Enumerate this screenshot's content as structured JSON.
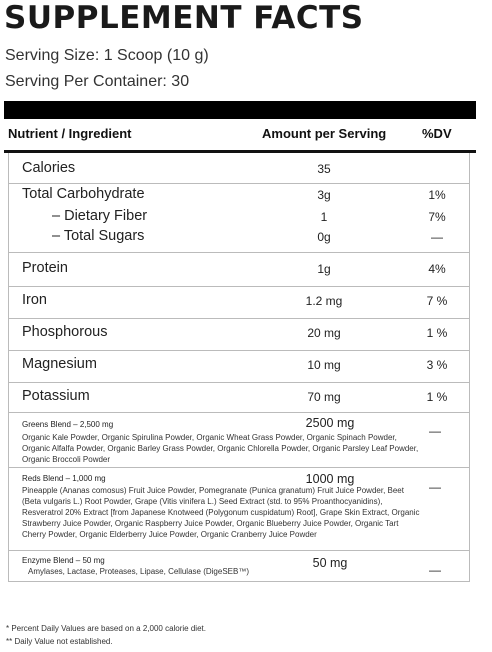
{
  "header": {
    "title": "SUPPLEMENT FACTS",
    "serving_size": "Serving Size: 1 Scoop (10 g)",
    "servings_per_container": "Serving Per Container: 30"
  },
  "table": {
    "columns": [
      "Nutrient / Ingredient",
      "Amount per Serving",
      "%DV"
    ],
    "rows": [
      {
        "name": "Calories",
        "amount": "35"
      },
      {
        "name": "Total Carbohydrate",
        "amount": "3g",
        "dv": "1%"
      },
      {
        "name": "– Dietary Fiber",
        "amount": "1",
        "dv": "7%"
      },
      {
        "name": "– Total Sugars",
        "amount": "0g",
        "dv": "—"
      },
      {
        "name": "Protein",
        "amount": "1g",
        "dv": "4%"
      },
      {
        "name": "Iron",
        "amount": "1.2 mg",
        "dv": "7 %"
      },
      {
        "name": "Phosphorous",
        "amount": "20 mg",
        "dv": "1 %"
      },
      {
        "name": "Magnesium",
        "amount": "10 mg",
        "dv": "3 %"
      },
      {
        "name": "Potassium",
        "amount": "70 mg",
        "dv": "1 %"
      }
    ],
    "blends": [
      {
        "name": "Greens Blend – 2,500 mg",
        "amount": "2500 mg",
        "dv": "—",
        "ingredients": "Organic Kale Powder, Organic Spirulina Powder, Organic Wheat Grass Powder, Organic Spinach Powder, Organic Alfalfa Powder, Organic Barley Grass Powder, Organic Chlorella Powder, Organic Parsley Leaf Powder, Organic Broccoli Powder"
      },
      {
        "name": "Reds Blend – 1,000 mg",
        "amount": "1000 mg",
        "dv": "—",
        "ingredients": "Pineapple (Ananas comosus) Fruit Juice Powder, Pomegranate (Punica granatum) Fruit Juice Powder, Beet (Beta vulgaris L.) Root Powder, Grape (Vitis vinifera L.) Seed Extract (std. to 95% Proanthocyanidins), Resveratrol 20% Extract [from Japanese Knotweed (Polygonum cuspidatum) Root], Grape Skin Extract, Organic Strawberry Juice Powder, Organic Raspberry Juice Powder, Organic Blueberry Juice Powder, Organic Tart Cherry Powder, Organic Elderberry Juice Powder, Organic Cranberry Juice Powder"
      },
      {
        "name": "Enzyme Blend – 50 mg",
        "amount": "50 mg",
        "dv": "—",
        "ingredients": "Amylases, Lactase, Proteases, Lipase, Cellulase (DigeSEB™)"
      }
    ]
  },
  "footnotes": [
    "* Percent Daily Values are based on a 2,000 calorie diet.",
    "** Daily Value not established."
  ]
}
